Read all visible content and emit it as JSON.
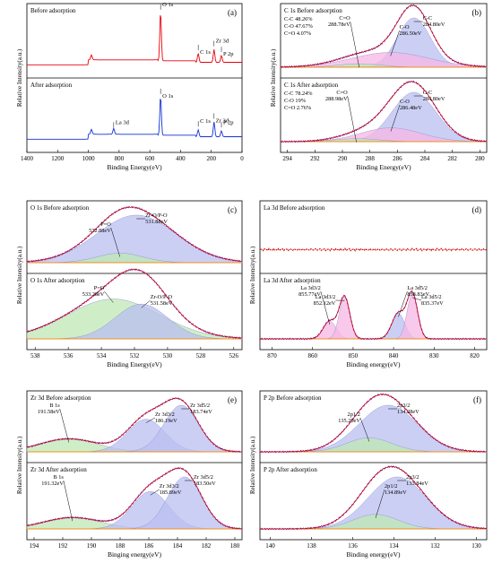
{
  "colors": {
    "frame": "#000000",
    "before_survey": "#e8000b",
    "after_survey": "#1530d6",
    "envelope": "#d40000",
    "experimental": "#7d1a8c",
    "baseline": "#f09020",
    "fill_blue": "#b9bff0",
    "fill_green": "#bfe8b4",
    "fill_pink": "#f6b7e4"
  },
  "chart_data": [
    {
      "id": "a",
      "type": "line",
      "panel_label": "(a)",
      "xlabel": "Binding Energy(eV)",
      "ylabel": "Relative Intensity(a.u.)",
      "xlim": [
        1400,
        0
      ],
      "xticks": [
        "1400",
        "1200",
        "1000",
        "800",
        "600",
        "400",
        "200",
        "0"
      ],
      "subplots": [
        {
          "title": "Before adsorption",
          "series_color": "before_survey",
          "peaks": [
            {
              "x": 980,
              "y": 0.1
            },
            {
              "x": 530,
              "y": 1.0
            },
            {
              "x": 285,
              "y": 0.18
            },
            {
              "x": 182,
              "y": 0.26
            },
            {
              "x": 134,
              "y": 0.14
            }
          ],
          "annotations": [
            {
              "text": "O 1s",
              "x": 530
            },
            {
              "text": "C 1s",
              "x": 285
            },
            {
              "text": "Zr 3d",
              "x": 182
            },
            {
              "text": "P 2p",
              "x": 134
            }
          ]
        },
        {
          "title": "After adsorption",
          "series_color": "after_survey",
          "peaks": [
            {
              "x": 980,
              "y": 0.1
            },
            {
              "x": 835,
              "y": 0.12
            },
            {
              "x": 530,
              "y": 0.8
            },
            {
              "x": 285,
              "y": 0.14
            },
            {
              "x": 182,
              "y": 0.3
            },
            {
              "x": 134,
              "y": 0.12
            }
          ],
          "annotations": [
            {
              "text": "La 3d",
              "x": 835
            },
            {
              "text": "O 1s",
              "x": 530
            },
            {
              "text": "C 1s",
              "x": 285
            },
            {
              "text": "Zr 3d",
              "x": 182
            },
            {
              "text": "P 2p",
              "x": 134
            }
          ]
        }
      ]
    },
    {
      "id": "b",
      "type": "area",
      "panel_label": "(b)",
      "xlabel": "Binding Energy(eV)",
      "ylabel": "Relative Intensity(a.u.)",
      "xlim": [
        294.5,
        279.5
      ],
      "xticks": [
        "294",
        "292",
        "290",
        "288",
        "286",
        "284",
        "282",
        "280"
      ],
      "subplots": [
        {
          "title": "C 1s Before adsorption",
          "composition": [
            "C-C 48.26%",
            "C-O 47.67%",
            "C=O 4.07%"
          ],
          "peaks": [
            {
              "label": "C-C",
              "position": "284.80eV",
              "center": 284.8,
              "height": 1.0,
              "width": 1.2,
              "fill": "fill_blue"
            },
            {
              "label": "C-O",
              "position": "286.50eV",
              "center": 286.5,
              "height": 0.3,
              "width": 2.8,
              "fill": "fill_pink"
            },
            {
              "label": "C=O",
              "position": "288.78eV",
              "center": 288.78,
              "height": 0.07,
              "width": 1.6,
              "fill": "fill_green"
            }
          ]
        },
        {
          "title": "C 1s After adsorption",
          "composition": [
            "C-C 78.24%",
            "C-O 19%",
            "C=O 2.76%"
          ],
          "peaks": [
            {
              "label": "C-C",
              "position": "284.80eV",
              "center": 284.8,
              "height": 1.0,
              "width": 1.6,
              "fill": "fill_blue"
            },
            {
              "label": "C-O",
              "position": "286.48eV",
              "center": 286.48,
              "height": 0.28,
              "width": 2.2,
              "fill": "fill_pink"
            },
            {
              "label": "C=O",
              "position": "288.98eV",
              "center": 288.98,
              "height": 0.06,
              "width": 1.6,
              "fill": "fill_green"
            }
          ]
        }
      ]
    },
    {
      "id": "c",
      "type": "area",
      "panel_label": "(c)",
      "xlabel": "Binding Energy(eV)",
      "ylabel": "Relative Intensity(a.u.)",
      "xlim": [
        538.5,
        525.5
      ],
      "xticks": [
        "538",
        "536",
        "534",
        "532",
        "530",
        "528",
        "526"
      ],
      "subplots": [
        {
          "title": "O 1s  Before adsorption",
          "peaks": [
            {
              "label": "Zr-O/P-O",
              "position": "531.88eV",
              "center": 531.88,
              "height": 1.0,
              "width": 2.4,
              "fill": "fill_blue"
            },
            {
              "label": "P=O",
              "position": "532.88eV",
              "center": 532.88,
              "height": 0.2,
              "width": 1.4,
              "fill": "fill_green"
            }
          ]
        },
        {
          "title": "O 1s  After adsorption",
          "peaks": [
            {
              "label": "P=O",
              "position": "533.28eV",
              "center": 533.28,
              "height": 0.78,
              "width": 2.8,
              "fill": "fill_green"
            },
            {
              "label": "Zr-O/P-O",
              "position": "531.58eV",
              "center": 531.58,
              "height": 0.68,
              "width": 1.6,
              "fill": "fill_blue"
            }
          ]
        }
      ]
    },
    {
      "id": "d",
      "type": "line",
      "panel_label": "(d)",
      "xlabel": "Binding energy(eV)",
      "ylabel": "Relative Intensity(a.u.)",
      "xlim": [
        873,
        817
      ],
      "xticks": [
        "870",
        "860",
        "850",
        "840",
        "830",
        "820"
      ],
      "subplots": [
        {
          "title": "La 3d  Before adsorption",
          "peaks": []
        },
        {
          "title": "La 3d After adsorption",
          "peaks": [
            {
              "label": "La 3d3/2",
              "position": "855.77eV",
              "center": 855.77,
              "height": 0.35,
              "width": 1.6,
              "fill": "fill_pink"
            },
            {
              "label": "La 3d3/2",
              "position": "852.12eV",
              "center": 852.12,
              "height": 0.82,
              "width": 1.3,
              "fill": "fill_pink"
            },
            {
              "label": "La 3d5/2",
              "position": "838.83eV",
              "center": 838.83,
              "height": 0.5,
              "width": 1.6,
              "fill": "fill_blue"
            },
            {
              "label": "La 3d5/2",
              "position": "835.37eV",
              "center": 835.37,
              "height": 0.88,
              "width": 1.3,
              "fill": "fill_pink"
            }
          ]
        }
      ]
    },
    {
      "id": "e",
      "type": "area",
      "panel_label": "(e)",
      "xlabel": "Binging energy(eV)",
      "ylabel": "Relative Intensity(a.u.)",
      "xlim": [
        194.5,
        179.5
      ],
      "xticks": [
        "194",
        "192",
        "190",
        "188",
        "186",
        "184",
        "182",
        "180"
      ],
      "subplots": [
        {
          "title": "Zr 3d  Before adsorption",
          "peaks": [
            {
              "label": "B 1s",
              "position": "191.58eV",
              "center": 191.58,
              "height": 0.28,
              "width": 2.0,
              "fill": "fill_green"
            },
            {
              "label": "Zr 3d3/2",
              "position": "186.19eV",
              "center": 186.19,
              "height": 0.7,
              "width": 1.3,
              "fill": "fill_blue"
            },
            {
              "label": "Zr 3d5/2",
              "position": "183.74eV",
              "center": 183.74,
              "height": 1.0,
              "width": 1.2,
              "fill": "fill_blue"
            }
          ]
        },
        {
          "title": "Zr 3d  After adsorption",
          "peaks": [
            {
              "label": "B 1s",
              "position": "191.32eV",
              "center": 191.32,
              "height": 0.22,
              "width": 2.0,
              "fill": "fill_green"
            },
            {
              "label": "Zr 3d3/2",
              "position": "185.89eV",
              "center": 185.89,
              "height": 0.72,
              "width": 1.3,
              "fill": "fill_blue"
            },
            {
              "label": "Zr 3d5/2",
              "position": "183.50eV",
              "center": 183.5,
              "height": 1.0,
              "width": 1.2,
              "fill": "fill_blue"
            }
          ]
        }
      ]
    },
    {
      "id": "f",
      "type": "area",
      "panel_label": "(f)",
      "xlabel": "Binding energy(eV)",
      "ylabel": "Relative Intensity(a.u.)",
      "xlim": [
        140.5,
        129.5
      ],
      "xticks": [
        "140",
        "138",
        "136",
        "134",
        "132",
        "130"
      ],
      "subplots": [
        {
          "title": "P 2p Before adsorption",
          "peaks": [
            {
              "label": "2p3/2",
              "position": "134.28eV",
              "center": 134.28,
              "height": 1.0,
              "width": 1.4,
              "fill": "fill_blue"
            },
            {
              "label": "2p1/2",
              "position": "135.20eV",
              "center": 135.2,
              "height": 0.3,
              "width": 1.1,
              "fill": "fill_green"
            }
          ]
        },
        {
          "title": "P 2p After adsorption",
          "peaks": [
            {
              "label": "2p3/2",
              "position": "133.84eV",
              "center": 133.84,
              "height": 1.0,
              "width": 1.4,
              "fill": "fill_blue"
            },
            {
              "label": "2p1/2",
              "position": "134.89eV",
              "center": 134.89,
              "height": 0.28,
              "width": 1.1,
              "fill": "fill_green"
            }
          ]
        }
      ]
    }
  ]
}
